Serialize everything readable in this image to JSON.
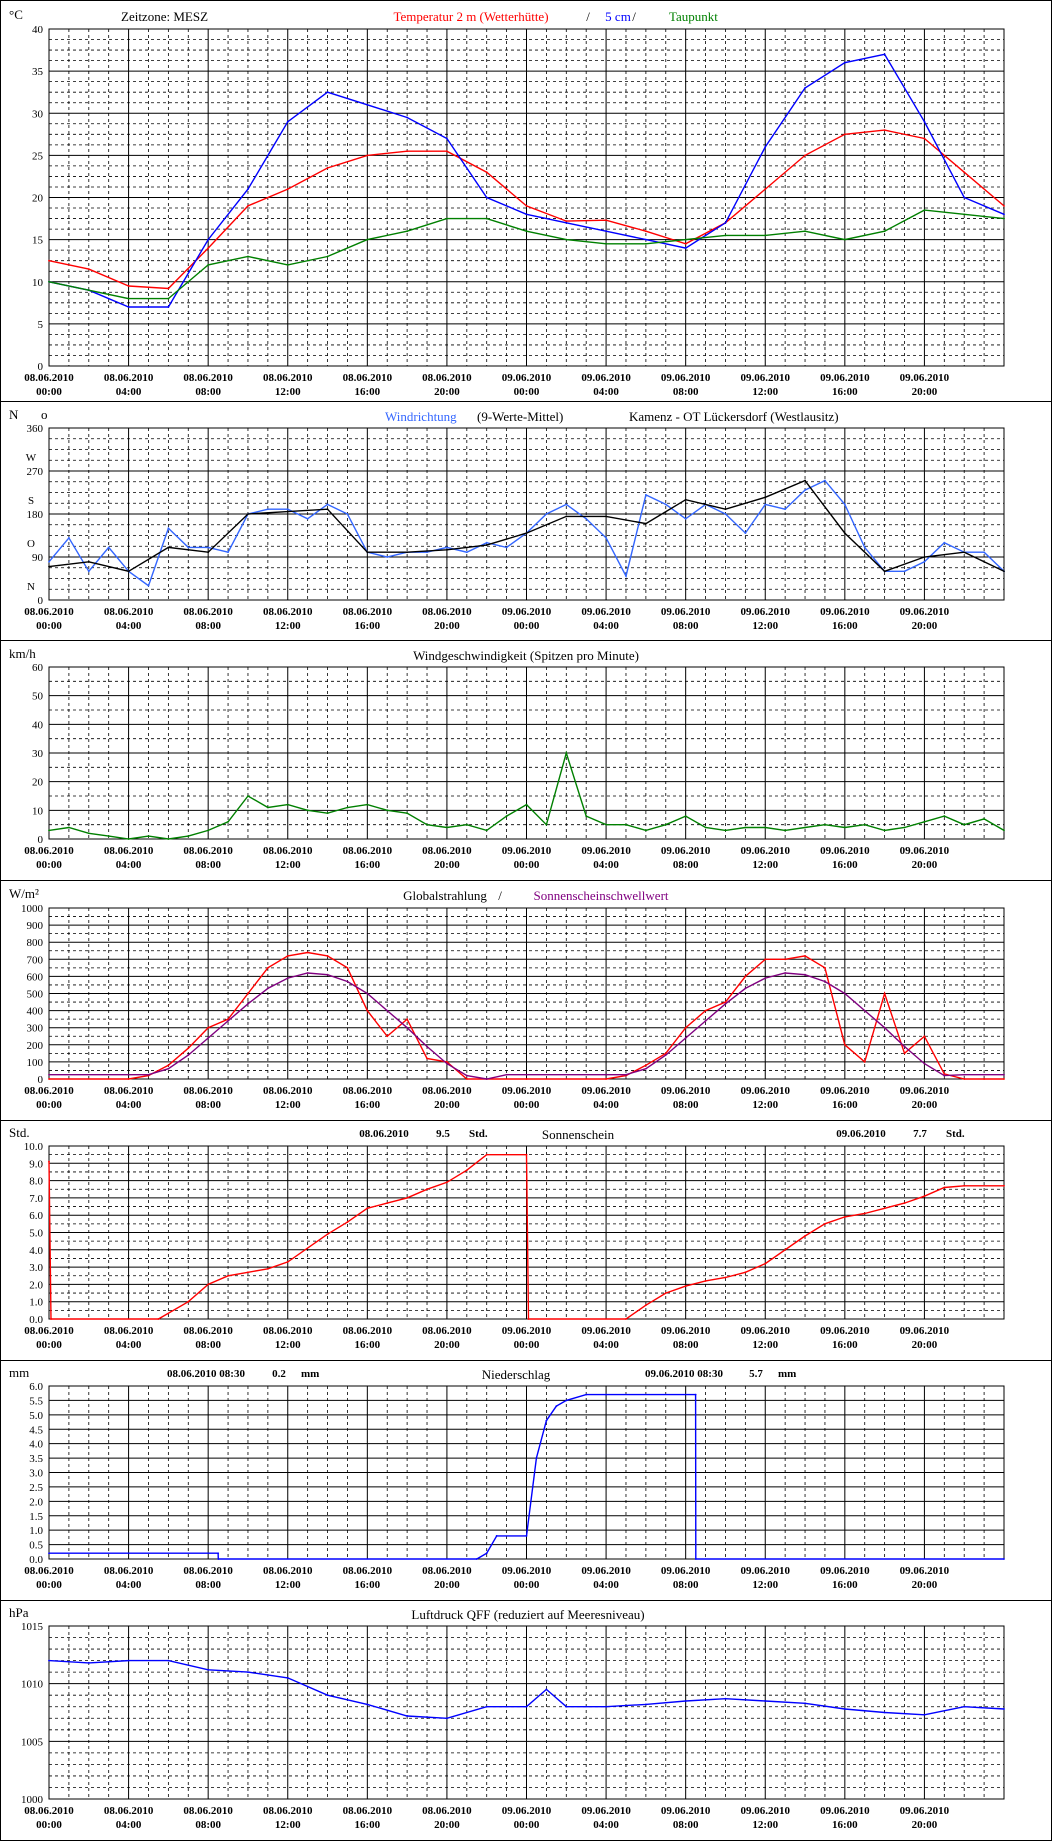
{
  "chart_data": [
    {
      "id": "temp",
      "type": "line",
      "unit_label": "°C",
      "title_parts": [
        {
          "text": "Zeitzone: MESZ",
          "color": "#000000"
        },
        {
          "text": "Temperatur 2 m (Wetterhütte)",
          "color": "#ff0000"
        },
        {
          "text": "/",
          "color": "#000000"
        },
        {
          "text": "5 cm",
          "color": "#0000ff"
        },
        {
          "text": "/",
          "color": "#000000"
        },
        {
          "text": "Taupunkt",
          "color": "#008000"
        }
      ],
      "ylim": [
        0,
        40
      ],
      "yticks": [
        "0",
        "5",
        "10",
        "15",
        "20",
        "25",
        "30",
        "35",
        "40"
      ],
      "ytick_values": [
        0,
        5,
        10,
        15,
        20,
        25,
        30,
        35,
        40
      ],
      "grid": true,
      "series": [
        {
          "name": "Temperatur 2 m (Wetterhütte)",
          "color": "#ff0000",
          "x": [
            0,
            2,
            4,
            6,
            8,
            10,
            12,
            14,
            16,
            18,
            20,
            22,
            24,
            26,
            28,
            30,
            32,
            34,
            36,
            38,
            40,
            42,
            44,
            46,
            48
          ],
          "values": [
            12.5,
            11.5,
            9.5,
            9.2,
            14,
            19,
            21,
            23.5,
            25,
            25.5,
            25.5,
            23,
            19,
            17.2,
            17.3,
            16,
            14.5,
            17,
            21,
            25,
            27.5,
            28,
            27,
            23,
            19
          ]
        },
        {
          "name": "5 cm",
          "color": "#0000ff",
          "x": [
            0,
            2,
            4,
            6,
            8,
            10,
            12,
            14,
            16,
            18,
            20,
            22,
            24,
            26,
            28,
            30,
            32,
            34,
            36,
            38,
            40,
            42,
            44,
            46,
            48
          ],
          "values": [
            10,
            9,
            7,
            7,
            15,
            21,
            29,
            32.5,
            31,
            29.5,
            27,
            20,
            18,
            17,
            16,
            15,
            14,
            17,
            26,
            33,
            36,
            37,
            29,
            20,
            18
          ]
        },
        {
          "name": "Taupunkt",
          "color": "#008000",
          "x": [
            0,
            2,
            4,
            6,
            8,
            10,
            12,
            14,
            16,
            18,
            20,
            22,
            24,
            26,
            28,
            30,
            32,
            34,
            36,
            38,
            40,
            42,
            44,
            46,
            48
          ],
          "values": [
            10,
            9,
            8,
            8,
            12,
            13,
            12,
            13,
            15,
            16,
            17.5,
            17.5,
            16,
            15,
            14.5,
            14.5,
            15,
            15.5,
            15.5,
            16,
            15,
            16,
            18.5,
            18,
            17.5
          ]
        }
      ]
    },
    {
      "id": "wind_dir",
      "type": "line",
      "unit_label": "N",
      "unit_label_right": "o",
      "title_parts": [
        {
          "text": "Windrichtung",
          "color": "#3366ff"
        },
        {
          "text": "(9-Werte-Mittel)",
          "color": "#000000"
        },
        {
          "text": "Kamenz - OT Lückersdorf (Westlausitz)",
          "color": "#000000"
        }
      ],
      "ylim": [
        0,
        360
      ],
      "yticks": [
        "0",
        "90",
        "180",
        "270",
        "360"
      ],
      "ytick_values": [
        0,
        90,
        180,
        270,
        360
      ],
      "compass_labels": [
        "N",
        "O",
        "S",
        "W"
      ],
      "compass_values": [
        0,
        90,
        180,
        270
      ],
      "grid": true,
      "series": [
        {
          "name": "Windrichtung",
          "color": "#3366ff",
          "x": [
            0,
            1,
            2,
            3,
            4,
            5,
            6,
            7,
            8,
            9,
            10,
            11,
            12,
            13,
            14,
            15,
            16,
            17,
            18,
            19,
            20,
            21,
            22,
            23,
            24,
            25,
            26,
            27,
            28,
            29,
            30,
            31,
            32,
            33,
            34,
            35,
            36,
            37,
            38,
            39,
            40,
            41,
            42,
            43,
            44,
            45,
            46,
            47,
            48
          ],
          "values": [
            80,
            130,
            60,
            110,
            60,
            30,
            150,
            110,
            110,
            100,
            180,
            190,
            190,
            170,
            200,
            180,
            100,
            90,
            100,
            100,
            110,
            100,
            120,
            110,
            140,
            180,
            200,
            170,
            130,
            50,
            220,
            200,
            170,
            200,
            180,
            140,
            200,
            190,
            230,
            250,
            200,
            110,
            60,
            60,
            80,
            120,
            100,
            100,
            60
          ]
        },
        {
          "name": "9-Werte-Mittel",
          "color": "#000000",
          "x": [
            0,
            2,
            4,
            6,
            8,
            10,
            12,
            14,
            16,
            18,
            20,
            22,
            24,
            26,
            28,
            30,
            32,
            34,
            36,
            38,
            40,
            42,
            44,
            46,
            48
          ],
          "values": [
            70,
            80,
            60,
            110,
            100,
            180,
            185,
            190,
            100,
            100,
            105,
            115,
            140,
            175,
            175,
            160,
            210,
            190,
            215,
            250,
            140,
            60,
            90,
            100,
            60
          ]
        }
      ]
    },
    {
      "id": "wind_speed",
      "type": "line",
      "unit_label": "km/h",
      "title_parts": [
        {
          "text": "Windgeschwindigkeit (Spitzen pro Minute)",
          "color": "#000000"
        }
      ],
      "ylim": [
        0,
        60
      ],
      "yticks": [
        "0",
        "10",
        "20",
        "30",
        "40",
        "50",
        "60"
      ],
      "ytick_values": [
        0,
        10,
        20,
        30,
        40,
        50,
        60
      ],
      "grid": true,
      "series": [
        {
          "name": "Windgeschwindigkeit",
          "color": "#008000",
          "x": [
            0,
            1,
            2,
            3,
            4,
            5,
            6,
            7,
            8,
            9,
            10,
            11,
            12,
            13,
            14,
            15,
            16,
            17,
            18,
            19,
            20,
            21,
            22,
            23,
            24,
            25,
            26,
            27,
            28,
            29,
            30,
            31,
            32,
            33,
            34,
            35,
            36,
            37,
            38,
            39,
            40,
            41,
            42,
            43,
            44,
            45,
            46,
            47,
            48
          ],
          "values": [
            3,
            4,
            2,
            1,
            0,
            1,
            0,
            1,
            3,
            6,
            15,
            11,
            12,
            10,
            9,
            11,
            12,
            10,
            9,
            5,
            4,
            5,
            3,
            8,
            12,
            5,
            30,
            8,
            5,
            5,
            3,
            5,
            8,
            4,
            3,
            4,
            4,
            3,
            4,
            5,
            4,
            5,
            3,
            4,
            6,
            8,
            5,
            7,
            3
          ]
        }
      ]
    },
    {
      "id": "radiation",
      "type": "line",
      "unit_label": "W/m²",
      "title_parts": [
        {
          "text": "Globalstrahlung",
          "color": "#000000"
        },
        {
          "text": "/",
          "color": "#000000"
        },
        {
          "text": "Sonnenscheinschwellwert",
          "color": "#800080"
        }
      ],
      "ylim": [
        0,
        1000
      ],
      "yticks": [
        "0",
        "100",
        "200",
        "300",
        "400",
        "500",
        "600",
        "700",
        "800",
        "900",
        "1000"
      ],
      "ytick_values": [
        0,
        100,
        200,
        300,
        400,
        500,
        600,
        700,
        800,
        900,
        1000
      ],
      "grid": true,
      "series": [
        {
          "name": "Globalstrahlung",
          "color": "#ff0000",
          "x": [
            0,
            4,
            5,
            6,
            7,
            8,
            9,
            10,
            11,
            12,
            13,
            14,
            15,
            16,
            17,
            18,
            19,
            20,
            21,
            22,
            24,
            28,
            29,
            30,
            31,
            32,
            33,
            34,
            35,
            36,
            37,
            38,
            39,
            40,
            41,
            42,
            43,
            44,
            45,
            46,
            47,
            48
          ],
          "values": [
            0,
            0,
            20,
            80,
            180,
            300,
            350,
            500,
            650,
            720,
            740,
            720,
            650,
            400,
            250,
            350,
            120,
            100,
            0,
            0,
            0,
            0,
            20,
            80,
            150,
            300,
            400,
            450,
            600,
            700,
            700,
            720,
            650,
            200,
            100,
            500,
            150,
            250,
            30,
            0,
            0,
            0
          ]
        },
        {
          "name": "Sonnenscheinschwellwert",
          "color": "#800080",
          "x": [
            0,
            5,
            6,
            7,
            8,
            9,
            10,
            11,
            12,
            13,
            14,
            15,
            16,
            17,
            18,
            19,
            20,
            21,
            22,
            23,
            24,
            29,
            30,
            31,
            32,
            33,
            34,
            35,
            36,
            37,
            38,
            39,
            40,
            41,
            42,
            43,
            44,
            45,
            46,
            47,
            48
          ],
          "values": [
            25,
            25,
            60,
            140,
            240,
            340,
            440,
            530,
            590,
            620,
            610,
            570,
            500,
            400,
            300,
            190,
            90,
            20,
            0,
            25,
            25,
            25,
            60,
            140,
            240,
            340,
            440,
            530,
            590,
            620,
            610,
            570,
            500,
            400,
            300,
            190,
            90,
            20,
            25,
            25,
            25
          ]
        }
      ]
    },
    {
      "id": "sunshine",
      "type": "line",
      "unit_label": "Std.",
      "title_parts": [
        {
          "text": "Sonnenschein",
          "color": "#000000"
        }
      ],
      "annotations": [
        {
          "date": "08.06.2010",
          "value": "9.5",
          "unit": "Std."
        },
        {
          "date": "09.06.2010",
          "value": "7.7",
          "unit": "Std."
        }
      ],
      "ylim": [
        0,
        10
      ],
      "yticks": [
        "0.0",
        "1.0",
        "2.0",
        "3.0",
        "4.0",
        "5.0",
        "6.0",
        "7.0",
        "8.0",
        "9.0",
        "10.0"
      ],
      "ytick_values": [
        0,
        1,
        2,
        3,
        4,
        5,
        6,
        7,
        8,
        9,
        10
      ],
      "grid": true,
      "series": [
        {
          "name": "Sonnenschein",
          "color": "#ff0000",
          "x": [
            0,
            0.1,
            5.5,
            7,
            8,
            9,
            10,
            11,
            12,
            14,
            15,
            16,
            17,
            18,
            19,
            20,
            21,
            22,
            24,
            24.1,
            29,
            30,
            31,
            32,
            33,
            34,
            35,
            36,
            38,
            39,
            40,
            41,
            42,
            43,
            44,
            45,
            46,
            48
          ],
          "values": [
            9.1,
            0,
            0,
            1,
            2,
            2.5,
            2.7,
            2.9,
            3.3,
            4.9,
            5.6,
            6.4,
            6.7,
            7,
            7.5,
            7.9,
            8.6,
            9.5,
            9.5,
            0,
            0,
            0.8,
            1.5,
            1.9,
            2.2,
            2.4,
            2.7,
            3.2,
            4.8,
            5.5,
            5.9,
            6.1,
            6.4,
            6.7,
            7.1,
            7.6,
            7.7,
            7.7
          ]
        }
      ]
    },
    {
      "id": "precip",
      "type": "line",
      "unit_label": "mm",
      "title_parts": [
        {
          "text": "Niederschlag",
          "color": "#000000"
        }
      ],
      "annotations": [
        {
          "date": "08.06.2010 08:30",
          "value": "0.2",
          "unit": "mm"
        },
        {
          "date": "09.06.2010 08:30",
          "value": "5.7",
          "unit": "mm"
        }
      ],
      "ylim": [
        0,
        6
      ],
      "yticks": [
        "0.0",
        "0.5",
        "1.0",
        "1.5",
        "2.0",
        "2.5",
        "3.0",
        "3.5",
        "4.0",
        "4.5",
        "5.0",
        "5.5",
        "6.0"
      ],
      "ytick_values": [
        0,
        0.5,
        1,
        1.5,
        2,
        2.5,
        3,
        3.5,
        4,
        4.5,
        5,
        5.5,
        6
      ],
      "grid": true,
      "series": [
        {
          "name": "Niederschlag",
          "color": "#0000ff",
          "x": [
            0,
            8.5,
            8.51,
            21.5,
            22,
            22.5,
            24,
            24.5,
            25,
            25.5,
            26,
            27,
            28,
            32.5,
            32.51,
            48
          ],
          "values": [
            0.2,
            0.2,
            0,
            0,
            0.2,
            0.8,
            0.8,
            3.5,
            4.8,
            5.3,
            5.5,
            5.7,
            5.7,
            5.7,
            0,
            0
          ]
        }
      ]
    },
    {
      "id": "pressure",
      "type": "line",
      "unit_label": "hPa",
      "title_parts": [
        {
          "text": "Luftdruck QFF (reduziert auf Meeresniveau)",
          "color": "#000000"
        }
      ],
      "ylim": [
        1000,
        1015
      ],
      "yticks": [
        "1000",
        "1005",
        "1010",
        "1015"
      ],
      "ytick_values": [
        1000,
        1005,
        1010,
        1015
      ],
      "grid": true,
      "series": [
        {
          "name": "Luftdruck QFF",
          "color": "#0000ff",
          "x": [
            0,
            2,
            4,
            6,
            8,
            10,
            12,
            14,
            16,
            18,
            20,
            22,
            24,
            25,
            26,
            28,
            30,
            32,
            34,
            36,
            38,
            40,
            42,
            44,
            46,
            48
          ],
          "values": [
            1012,
            1011.8,
            1012,
            1012,
            1011.2,
            1011,
            1010.5,
            1009,
            1008.2,
            1007.2,
            1007,
            1008,
            1008,
            1009.5,
            1008,
            1008,
            1008.2,
            1008.5,
            1008.7,
            1008.5,
            1008.3,
            1007.8,
            1007.5,
            1007.3,
            1008,
            1007.8
          ]
        }
      ]
    }
  ],
  "x_axis": {
    "range_hours": [
      0,
      48
    ],
    "ticks": [
      {
        "date": "08.06.2010",
        "time": "00:00"
      },
      {
        "date": "08.06.2010",
        "time": "04:00"
      },
      {
        "date": "08.06.2010",
        "time": "08:00"
      },
      {
        "date": "08.06.2010",
        "time": "12:00"
      },
      {
        "date": "08.06.2010",
        "time": "16:00"
      },
      {
        "date": "08.06.2010",
        "time": "20:00"
      },
      {
        "date": "09.06.2010",
        "time": "00:00"
      },
      {
        "date": "09.06.2010",
        "time": "04:00"
      },
      {
        "date": "09.06.2010",
        "time": "08:00"
      },
      {
        "date": "09.06.2010",
        "time": "12:00"
      },
      {
        "date": "09.06.2010",
        "time": "16:00"
      },
      {
        "date": "09.06.2010",
        "time": "20:00"
      }
    ]
  }
}
